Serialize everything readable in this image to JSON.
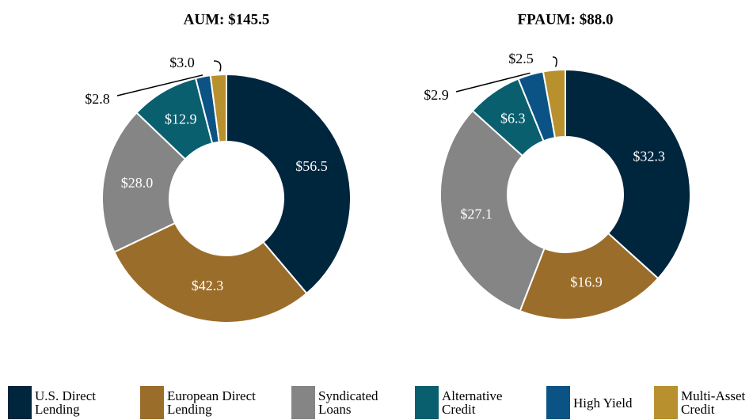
{
  "chart_data": [
    {
      "type": "pie",
      "title": "AUM: $145.5",
      "values": [
        56.5,
        42.3,
        28.0,
        12.9,
        2.8,
        3.0
      ],
      "value_labels": [
        "$56.5",
        "$42.3",
        "$28.0",
        "$12.9",
        "$2.8",
        "$3.0"
      ]
    },
    {
      "type": "pie",
      "title": "FPAUM: $88.0",
      "values": [
        32.3,
        16.9,
        27.1,
        6.3,
        2.9,
        2.5
      ],
      "value_labels": [
        "$32.3",
        "$16.9",
        "$27.1",
        "$6.3",
        "$2.9",
        "$2.5"
      ]
    }
  ],
  "legend": [
    {
      "name": "U.S. Direct Lending",
      "color": "#00263e"
    },
    {
      "name": "European Direct Lending",
      "color": "#9b6d2b"
    },
    {
      "name": "Syndicated Loans",
      "color": "#858585"
    },
    {
      "name": "Alternative Credit",
      "color": "#0a5f6f"
    },
    {
      "name": "High Yield",
      "color": "#0b5384"
    },
    {
      "name": "Multi-Asset Credit",
      "color": "#b8902e"
    }
  ]
}
